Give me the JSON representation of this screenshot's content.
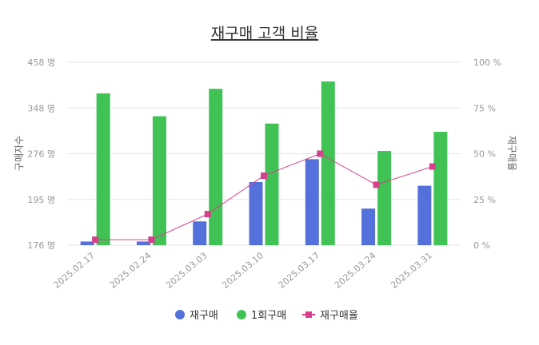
{
  "chart_data": {
    "type": "bar+line",
    "title": "재구매 고객 비율",
    "categories": [
      "2025.02.17",
      "2025.02.24",
      "2025.03.03",
      "2025.03.10",
      "2025.03.17",
      "2025.03.24",
      "2025.03.31"
    ],
    "y_left": {
      "label": "구매자수",
      "ticks": [
        "458 명",
        "348 명",
        "276 명",
        "195 명",
        "176 명"
      ]
    },
    "y_right": {
      "label": "재구매율",
      "ticks": [
        "100 %",
        "75 %",
        "50 %",
        "25 %",
        "0 %"
      ],
      "range": [
        0,
        100
      ]
    },
    "series": [
      {
        "name": "재구매",
        "type": "bar",
        "color": "#5470db",
        "level": [
          0.02,
          0.02,
          0.13,
          0.345,
          0.47,
          0.2,
          0.325
        ]
      },
      {
        "name": "1회구매",
        "type": "bar",
        "color": "#40c354",
        "level": [
          0.83,
          0.705,
          0.855,
          0.665,
          0.895,
          0.515,
          0.62
        ]
      },
      {
        "name": "재구매율",
        "type": "line",
        "color": "#d6408b",
        "values": [
          3,
          3,
          17,
          38,
          50,
          33,
          43
        ]
      }
    ],
    "legend": [
      "재구매",
      "1회구매",
      "재구매율"
    ],
    "legend_position": "bottom"
  }
}
